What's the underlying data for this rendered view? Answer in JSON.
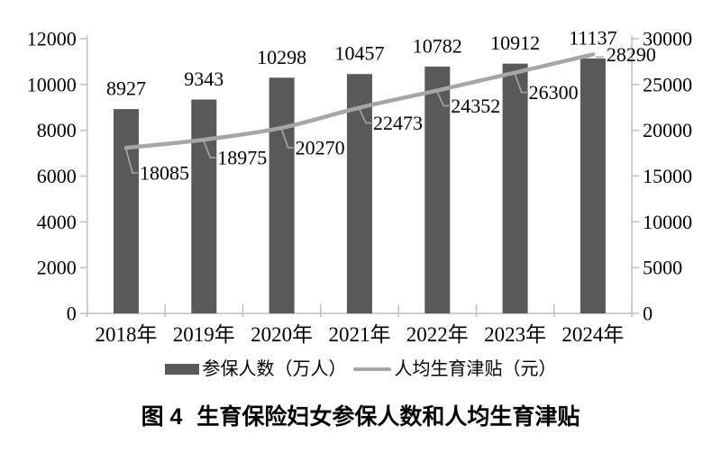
{
  "figure": {
    "caption_label": "图 4",
    "caption_title": "生育保险妇女参保人数和人均生育津贴"
  },
  "chart_data": {
    "type": "combo-bar-line",
    "title": "图4 生育保险妇女参保人数和人均生育津贴",
    "categories": [
      "2018年",
      "2019年",
      "2020年",
      "2021年",
      "2022年",
      "2023年",
      "2024年"
    ],
    "series": [
      {
        "name": "参保人数（万人）",
        "type": "bar",
        "axis": "left",
        "color": "#595959",
        "values": [
          8927,
          9343,
          10298,
          10457,
          10782,
          10912,
          11137
        ]
      },
      {
        "name": "人均生育津贴（元）",
        "type": "line",
        "axis": "right",
        "color": "#a6a6a6",
        "values": [
          18085,
          18975,
          20270,
          22473,
          24352,
          26300,
          28290
        ]
      }
    ],
    "left_axis": {
      "min": 0,
      "max": 12000,
      "step": 2000,
      "tick_labels": [
        "0",
        "2000",
        "4000",
        "6000",
        "8000",
        "10000",
        "12000"
      ]
    },
    "right_axis": {
      "min": 0,
      "max": 30000,
      "step": 5000,
      "tick_labels": [
        "0",
        "5000",
        "10000",
        "15000",
        "20000",
        "25000",
        "30000"
      ]
    },
    "legend_position": "bottom",
    "grid": false,
    "layout": {
      "axis_color": "#bfbfbf",
      "leader_color": "#a6a6a6",
      "line_label_dy": [
        28,
        20,
        22,
        17,
        17,
        22,
        0
      ],
      "bar_label_gap": 23
    }
  }
}
